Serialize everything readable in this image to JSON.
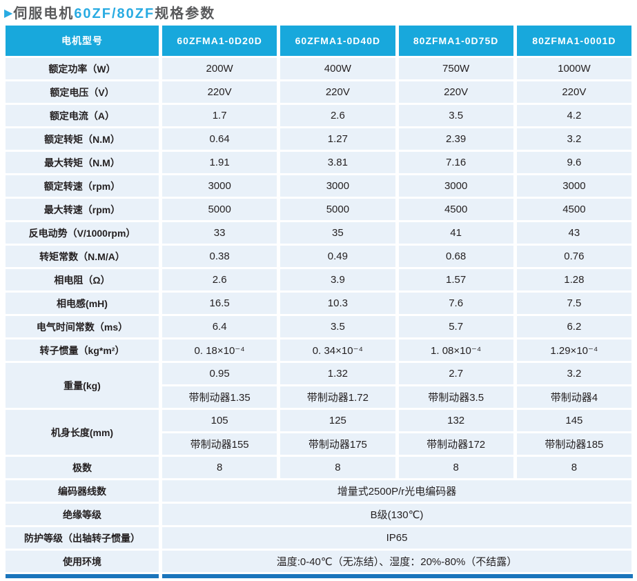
{
  "title": {
    "arrow": "▶",
    "prefix": "伺服电机",
    "highlight": "60ZF/80ZF",
    "suffix": "规格参数"
  },
  "colors": {
    "header_bg": "#18a8dc",
    "header_text": "#ffffff",
    "row_bg": "#e9f1f9",
    "cell_text": "#231f20",
    "title_text": "#58595b",
    "accent_text": "#29abe2",
    "bottom_bar": "#1b75bc",
    "page_bg": "#ffffff"
  },
  "table": {
    "header": [
      "电机型号",
      "60ZFMA1-0D20D",
      "60ZFMA1-0D40D",
      "80ZFMA1-0D75D",
      "80ZFMA1-0001D"
    ],
    "rows": [
      {
        "type": "normal",
        "label": "额定功率（W）",
        "values": [
          "200W",
          "400W",
          "750W",
          "1000W"
        ]
      },
      {
        "type": "normal",
        "label": "额定电压（V）",
        "values": [
          "220V",
          "220V",
          "220V",
          "220V"
        ]
      },
      {
        "type": "normal",
        "label": "额定电流（A）",
        "values": [
          "1.7",
          "2.6",
          "3.5",
          "4.2"
        ]
      },
      {
        "type": "normal",
        "label": "额定转矩（N.M）",
        "values": [
          "0.64",
          "1.27",
          "2.39",
          "3.2"
        ]
      },
      {
        "type": "normal",
        "label": "最大转矩（N.M）",
        "values": [
          "1.91",
          "3.81",
          "7.16",
          "9.6"
        ]
      },
      {
        "type": "normal",
        "label": "额定转速（rpm）",
        "values": [
          "3000",
          "3000",
          "3000",
          "3000"
        ]
      },
      {
        "type": "normal",
        "label": "最大转速（rpm）",
        "values": [
          "5000",
          "5000",
          "4500",
          "4500"
        ]
      },
      {
        "type": "normal",
        "label": "反电动势（V/1000rpm）",
        "values": [
          "33",
          "35",
          "41",
          "43"
        ]
      },
      {
        "type": "normal",
        "label": "转矩常数（N.M/A）",
        "values": [
          "0.38",
          "0.49",
          "0.68",
          "0.76"
        ]
      },
      {
        "type": "normal",
        "label": "相电阻（Ω）",
        "values": [
          "2.6",
          "3.9",
          "1.57",
          "1.28"
        ]
      },
      {
        "type": "normal",
        "label": "相电感(mH)",
        "values": [
          "16.5",
          "10.3",
          "7.6",
          "7.5"
        ]
      },
      {
        "type": "normal",
        "label": "电气时间常数（ms）",
        "values": [
          "6.4",
          "3.5",
          "5.7",
          "6.2"
        ]
      },
      {
        "type": "normal",
        "label": "转子惯量（kg*m²）",
        "values": [
          "0. 18×10⁻⁴",
          "0. 34×10⁻⁴",
          "1. 08×10⁻⁴",
          "1.29×10⁻⁴"
        ]
      },
      {
        "type": "double",
        "label": "重量(kg)",
        "values": [
          "0.95",
          "1.32",
          "2.7",
          "3.2"
        ],
        "values2": [
          "带制动器1.35",
          "带制动器1.72",
          "带制动器3.5",
          "带制动器4"
        ]
      },
      {
        "type": "double",
        "label": "机身长度(mm)",
        "values": [
          "105",
          "125",
          "132",
          "145"
        ],
        "values2": [
          "带制动器155",
          "带制动器175",
          "带制动器172",
          "带制动器185"
        ]
      },
      {
        "type": "normal",
        "label": "极数",
        "values": [
          "8",
          "8",
          "8",
          "8"
        ]
      },
      {
        "type": "span",
        "label": "编码器线数",
        "value": "增量式2500P/r光电编码器"
      },
      {
        "type": "span",
        "label": "绝缘等级",
        "value": "B级(130℃)"
      },
      {
        "type": "span",
        "label": "防护等级（出轴转子惯量）",
        "value": "IP65"
      },
      {
        "type": "span",
        "label": "使用环境",
        "value": "温度:0-40℃（无冻结）、湿度：20%-80%（不结露）"
      }
    ]
  }
}
